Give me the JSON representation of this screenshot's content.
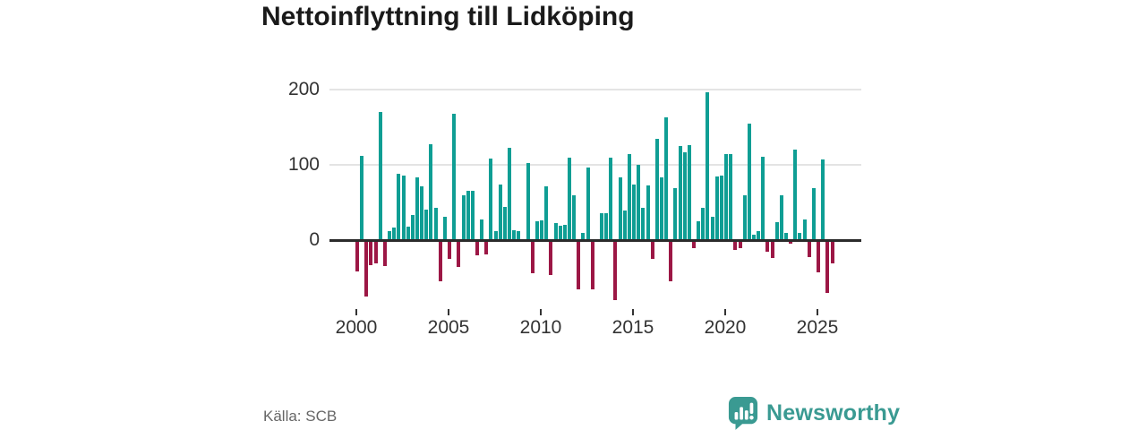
{
  "title": "Nettoinflyttning till Lidköping",
  "source": "Källa: SCB",
  "branding": {
    "name": "Newsworthy",
    "logo_icon": "speech-bubble-bar-chart-icon"
  },
  "colors": {
    "positive_bar": "#0f9e94",
    "negative_bar": "#9c1745",
    "gridline": "#e4e4e4",
    "zero_line": "#2b2b2b",
    "axis_text": "#333333",
    "title_text": "#1a1a1a",
    "source_text": "#666666",
    "brand_teal": "#3a9a92"
  },
  "chart_data": {
    "type": "bar",
    "title": "Nettoinflyttning till Lidköping",
    "frequency": "quarterly",
    "period": "2000Q1-2025Q4",
    "start_year": 2000,
    "quarters_per_year": 4,
    "x_tick_labels": [
      "2000",
      "2005",
      "2010",
      "2015",
      "2020",
      "2025"
    ],
    "y_tick_labels": [
      "0",
      "100",
      "200"
    ],
    "y_ticks": [
      0,
      100,
      200
    ],
    "ylim": [
      -95,
      215
    ],
    "grid": "horizontal-only",
    "legend": "none",
    "values": [
      -41,
      112,
      -74,
      -32,
      -30,
      170,
      -33,
      12,
      17,
      88,
      86,
      18,
      33,
      83,
      71,
      40,
      128,
      43,
      -53,
      31,
      -24,
      168,
      -34,
      59,
      65,
      66,
      -19,
      27,
      -18,
      108,
      12,
      74,
      44,
      123,
      13,
      12,
      0,
      102,
      -43,
      25,
      26,
      71,
      -45,
      23,
      19,
      20,
      109,
      59,
      -64,
      10,
      96,
      -64,
      0,
      36,
      36,
      109,
      -79,
      83,
      39,
      114,
      74,
      100,
      43,
      73,
      -24,
      134,
      83,
      163,
      -54,
      69,
      125,
      117,
      126,
      -9,
      25,
      43,
      196,
      31,
      85,
      86,
      114,
      114,
      -12,
      -9,
      59,
      155,
      7,
      12,
      111,
      -14,
      -22,
      24,
      60,
      10,
      -4,
      120,
      9,
      27,
      -21,
      69,
      -42,
      107,
      -69,
      -30
    ]
  }
}
